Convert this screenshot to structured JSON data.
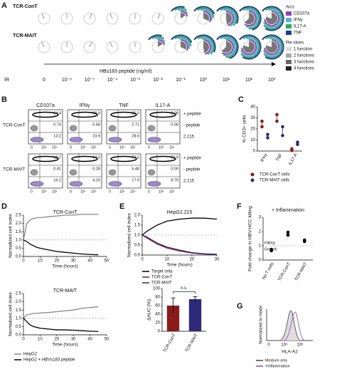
{
  "panel_letters": [
    "A",
    "B",
    "C",
    "D",
    "E",
    "F",
    "G"
  ],
  "panel_a": {
    "rows": [
      "TCR-ConT",
      "TCR-MAIT"
    ],
    "ir_label": "IR",
    "doses": [
      "0",
      "10⁻⁶",
      "10⁻⁵",
      "10⁻⁴",
      "10⁻³",
      "10⁻²",
      "10⁻¹",
      "10⁰",
      "10¹",
      "10²",
      "10³"
    ],
    "axis_label": "HBs183 peptide (ng/ml)",
    "arcs_title": "Arcs",
    "arcs": [
      "CD107a",
      "IFNγ",
      "IL17-A",
      "TNF"
    ],
    "pie_title": "Pie slices",
    "pie": [
      "1 function",
      "2 functions",
      "3 functions",
      "4 functions"
    ]
  },
  "panel_b": {
    "columns": [
      "CD107a",
      "IFNγ",
      "TNF",
      "IL17-A"
    ],
    "side_labels": [
      "+ peptide",
      "- peptide",
      "2.215"
    ],
    "flow_ticks": [
      "0",
      "10⁴",
      "10⁵"
    ],
    "rows": [
      {
        "label": "TCR-ConT",
        "values": [
          [
            "64.4",
            "0.74",
            "13.2"
          ],
          [
            "86.0",
            "0.58",
            "23.9"
          ],
          [
            "85.0",
            "2.71",
            "28.0"
          ],
          [
            "2.08",
            "0.00"
          ]
        ]
      },
      {
        "label": "TCR-MAIT",
        "values": [
          [
            "68.2",
            "0.81",
            "16.2"
          ],
          [
            "64.0",
            "0.28",
            "4.15"
          ],
          [
            "74.6",
            "5.48",
            "17.9"
          ],
          [
            "52.9",
            "0.00",
            "8.79"
          ]
        ]
      }
    ]
  },
  "panel_g": {
    "y_label": "Normalized to mode",
    "x_label": "HLA-A2",
    "xticks": [
      "0",
      "10⁴",
      "10⁵"
    ],
    "legend": [
      "Medium only",
      "+Inflammation"
    ]
  },
  "chart_data": [
    {
      "type": "dot",
      "y_label": "% CD3+ cells",
      "categories": [
        "IFNγ",
        "TNF",
        "IL17-A"
      ],
      "ylim": [
        0,
        40
      ],
      "yticks": [
        0,
        10,
        20,
        30,
        40
      ],
      "series": [
        {
          "name": "TCR-ConT cells",
          "color": "#8b1a1a",
          "values": [
            [
              22,
              27
            ],
            [
              27,
              33
            ],
            [
              0.5,
              2
            ]
          ]
        },
        {
          "name": "TCR-MAIT cells",
          "color": "#2e2a7a",
          "values": [
            [
              12,
              15
            ],
            [
              14,
              22
            ],
            [
              6,
              8
            ]
          ]
        }
      ]
    },
    {
      "type": "line",
      "title": "TCR-ConT",
      "y_label": "Normalized cell index",
      "x_label": "Time (hours)",
      "x": [
        0,
        2,
        4,
        6,
        8,
        10,
        15,
        20,
        25,
        30,
        35,
        40,
        45
      ],
      "xlim": [
        0,
        50
      ],
      "xticks": [
        0,
        10,
        20,
        30,
        40,
        50
      ],
      "ylim": [
        0,
        2.5
      ],
      "yticks": [
        {
          "value": 0,
          "label": "0.0"
        },
        0.5,
        {
          "value": 1,
          "label": "1.0"
        },
        1.5,
        {
          "value": 2,
          "label": "2.0"
        },
        2.5
      ],
      "reference_line": 1,
      "series": [
        {
          "color": "#888888",
          "values": [
            1.0,
            2.0,
            2.2,
            2.3,
            2.35,
            2.35,
            2.4,
            2.45,
            2.5,
            2.5,
            2.55,
            2.55,
            2.55
          ]
        },
        {
          "color": "#000000",
          "values": [
            1.0,
            0.9,
            0.75,
            0.65,
            0.55,
            0.5,
            0.4,
            0.3,
            0.25,
            0.2,
            0.15,
            0.12,
            0.1
          ]
        }
      ]
    },
    {
      "type": "line",
      "title": "TCR-MAIT",
      "y_label": "Normalized cell index",
      "x_label": "Time (hours)",
      "x": [
        0,
        2,
        4,
        6,
        8,
        10,
        15,
        20,
        25,
        30,
        35,
        40,
        45
      ],
      "xlim": [
        0,
        50
      ],
      "xticks": [
        0,
        10,
        20,
        30,
        40,
        50
      ],
      "ylim": [
        0,
        2.5
      ],
      "yticks": [
        {
          "value": 0,
          "label": "0.0"
        },
        0.5,
        {
          "value": 1,
          "label": "1.0"
        },
        1.5,
        {
          "value": 2,
          "label": "2.0"
        },
        2.5
      ],
      "reference_line": 1,
      "series": [
        {
          "name": "HepG2",
          "color": "#888888",
          "values": [
            1.0,
            1.2,
            1.25,
            1.3,
            1.3,
            1.32,
            1.35,
            1.4,
            1.45,
            1.5,
            1.6,
            1.65,
            1.7
          ]
        },
        {
          "name": "HepG2 + HBVs183 peptide",
          "color": "#000000",
          "values": [
            1.0,
            0.8,
            0.6,
            0.5,
            0.45,
            0.4,
            0.35,
            0.3,
            0.3,
            0.28,
            0.25,
            0.22,
            0.2
          ]
        }
      ]
    },
    {
      "type": "line",
      "title": "HepG2.215",
      "y_label": "Normalized cell index",
      "x_label": "Time (hours)",
      "x": [
        0,
        2,
        4,
        6,
        8,
        10,
        15,
        20,
        25,
        30
      ],
      "xlim": [
        0,
        30
      ],
      "xticks": [
        0,
        10,
        20,
        30
      ],
      "ylim": [
        0,
        2
      ],
      "yticks": [
        {
          "value": 0,
          "label": "0.0"
        },
        0.5,
        {
          "value": 1,
          "label": "1.0"
        },
        1.5,
        {
          "value": 2,
          "label": "2.0"
        }
      ],
      "reference_line": 1,
      "series": [
        {
          "name": "Target only",
          "color": "#000000",
          "values": [
            1.0,
            1.2,
            1.35,
            1.5,
            1.6,
            1.7,
            1.8,
            1.85,
            1.85,
            1.8
          ]
        },
        {
          "name": "TCR-ConT",
          "color": "#8b1a1a",
          "values": [
            1.0,
            0.85,
            0.7,
            0.55,
            0.45,
            0.35,
            0.2,
            0.1,
            0.05,
            0.03
          ]
        },
        {
          "name": "TCR-MAIT",
          "color": "#2e2a7a",
          "values": [
            1.0,
            0.9,
            0.75,
            0.6,
            0.5,
            0.4,
            0.25,
            0.12,
            0.06,
            0.04
          ]
        }
      ]
    },
    {
      "type": "bar",
      "y_label": "ΔAUC (%)",
      "categories": [
        "TCR-ConT",
        "TCR-MAIT"
      ],
      "values": [
        60,
        75
      ],
      "errors": [
        18,
        6
      ],
      "colors": [
        "#8b1a1a",
        "#2e2a7a"
      ],
      "ylim": [
        0,
        100
      ],
      "yticks": [
        0,
        20,
        40,
        60,
        80,
        100
      ],
      "annotation": "n.s."
    },
    {
      "type": "dot",
      "y_label": "Fold change in HBV-HCC killing",
      "categories": [
        "No T cells",
        "TCR-ConT",
        "TCR-MAIT"
      ],
      "ylim": [
        0,
        3
      ],
      "yticks": [
        0,
        1,
        2,
        3
      ],
      "reference_line": 1,
      "series": [
        {
          "color": "#000000",
          "values": [
            [
              0.65,
              0.75
            ],
            [
              1.75,
              1.95
            ],
            [
              1.3,
              1.4
            ]
          ]
        }
      ],
      "annotations": [
        "+ Inflammation",
        "Killing",
        "Growth"
      ],
      "annotation_color": "#8e44ad"
    }
  ]
}
